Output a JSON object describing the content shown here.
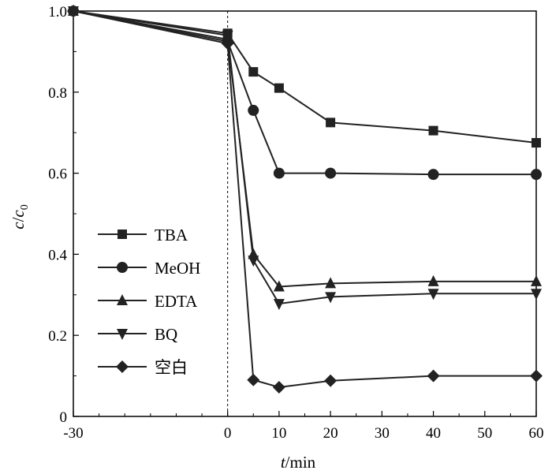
{
  "chart_data": {
    "type": "line",
    "xlabel_italic": "t",
    "xlabel_rest": "/min",
    "ylabel_c": "c",
    "ylabel_slash": "/",
    "ylabel_c0": "c",
    "ylabel_sub": "0",
    "x_ticks": [
      "-30",
      "0",
      "10",
      "20",
      "30",
      "40",
      "50",
      "60"
    ],
    "x_tick_values": [
      -30,
      0,
      10,
      20,
      30,
      40,
      50,
      60
    ],
    "y_ticks": [
      "0",
      "0.2",
      "0.4",
      "0.6",
      "0.8",
      "1.0"
    ],
    "y_tick_values": [
      0,
      0.2,
      0.4,
      0.6,
      0.8,
      1.0
    ],
    "xlim": [
      -30,
      60
    ],
    "ylim": [
      0,
      1.0
    ],
    "reference_line_x": 0,
    "legend_position": "left-center",
    "series": [
      {
        "name": "TBA",
        "marker": "square",
        "x": [
          -30,
          0,
          5,
          10,
          20,
          40,
          60
        ],
        "y": [
          1.0,
          0.945,
          0.85,
          0.81,
          0.725,
          0.705,
          0.675
        ]
      },
      {
        "name": "MeOH",
        "marker": "circle",
        "x": [
          -30,
          0,
          5,
          10,
          20,
          40,
          60
        ],
        "y": [
          1.0,
          0.925,
          0.755,
          0.6,
          0.6,
          0.597,
          0.597
        ]
      },
      {
        "name": "EDTA",
        "marker": "triangle-up",
        "x": [
          -30,
          0,
          5,
          10,
          20,
          40,
          60
        ],
        "y": [
          1.0,
          0.93,
          0.4,
          0.32,
          0.328,
          0.333,
          0.333
        ]
      },
      {
        "name": "BQ",
        "marker": "triangle-down",
        "x": [
          -30,
          0,
          5,
          10,
          20,
          40,
          60
        ],
        "y": [
          1.0,
          0.94,
          0.385,
          0.278,
          0.295,
          0.303,
          0.303
        ]
      },
      {
        "name": "空白",
        "marker": "diamond",
        "x": [
          -30,
          0,
          5,
          10,
          20,
          40,
          60
        ],
        "y": [
          1.0,
          0.92,
          0.09,
          0.072,
          0.088,
          0.1,
          0.1
        ]
      }
    ]
  }
}
